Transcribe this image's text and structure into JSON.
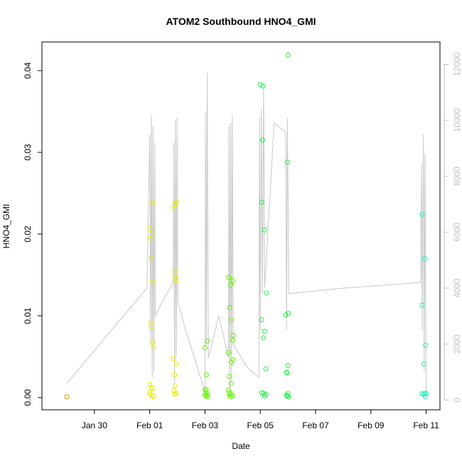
{
  "chart_data": {
    "type": "scatter",
    "title": "ATOM2 Southbound HNO4_GMI",
    "xlabel": "Date",
    "ylabel": "HNO4_GMI",
    "x_ticks": [
      "Jan 30",
      "Feb 01",
      "Feb 03",
      "Feb 05",
      "Feb 07",
      "Feb 09",
      "Feb 11"
    ],
    "x_tick_days": [
      30,
      32,
      34,
      36,
      38,
      40,
      42
    ],
    "xlim_days": [
      28.1,
      42.5
    ],
    "ylim": [
      -0.0015,
      0.0435
    ],
    "y_ticks": [
      "0.00",
      "0.01",
      "0.02",
      "0.03",
      "0.04"
    ],
    "y_tick_values": [
      0.0,
      0.01,
      0.02,
      0.03,
      0.04
    ],
    "y2_ticks": [
      "0",
      "2000",
      "4000",
      "6000",
      "8000",
      "10000",
      "12000"
    ],
    "y2_tick_values": [
      0,
      2000,
      4000,
      6000,
      8000,
      10000,
      12000
    ],
    "y2lim": [
      -350,
      12800
    ],
    "grid": false,
    "legend": "none",
    "colors": {
      "points_early": "#e69500",
      "points_yellow": "#e2ee00",
      "points_lime": "#66ee00",
      "points_green": "#22ee44",
      "points_cyan": "#22eebb",
      "altitude_line": "#c8c8c8",
      "axis": "#000000",
      "right_axis": "#c0c0c0"
    },
    "series": [
      {
        "color": "#e69500",
        "points": [
          [
            29.0,
            0.0001
          ]
        ]
      },
      {
        "color": "#e2ee00",
        "points": [
          [
            32.0,
            0.0207
          ],
          [
            32.02,
            0.0195
          ],
          [
            32.05,
            0.0171
          ],
          [
            32.08,
            0.0203
          ],
          [
            32.1,
            0.0238
          ],
          [
            32.1,
            0.0142
          ],
          [
            32.02,
            0.0091
          ],
          [
            32.06,
            0.0086
          ],
          [
            32.1,
            0.0067
          ],
          [
            32.14,
            0.0061
          ],
          [
            32.0,
            0.0016
          ],
          [
            32.06,
            0.0012
          ],
          [
            32.12,
            0.0011
          ],
          [
            32.02,
            0.0004
          ],
          [
            32.08,
            0.0002
          ],
          [
            32.14,
            0.0001
          ],
          [
            32.0,
            0.0006
          ],
          [
            32.85,
            0.0232
          ],
          [
            32.92,
            0.0236
          ],
          [
            32.97,
            0.0239
          ],
          [
            32.9,
            0.0154
          ],
          [
            32.92,
            0.0146
          ],
          [
            32.95,
            0.0143
          ],
          [
            32.85,
            0.0048
          ],
          [
            32.9,
            0.0028
          ],
          [
            32.97,
            0.0041
          ],
          [
            32.92,
            0.0014
          ],
          [
            32.88,
            0.0008
          ],
          [
            32.95,
            0.0005
          ],
          [
            32.9,
            0.0004
          ]
        ]
      },
      {
        "color": "#66ee00",
        "points": [
          [
            34.0,
            0.0061
          ],
          [
            34.08,
            0.0069
          ],
          [
            34.05,
            0.0028
          ],
          [
            34.0,
            0.001
          ],
          [
            34.05,
            0.0009
          ],
          [
            34.02,
            0.0006
          ],
          [
            34.08,
            0.0004
          ],
          [
            34.0,
            0.0003
          ],
          [
            34.04,
            0.0002
          ],
          [
            34.1,
            0.0001
          ],
          [
            34.85,
            0.0147
          ],
          [
            34.92,
            0.0138
          ],
          [
            35.0,
            0.0143
          ],
          [
            34.9,
            0.011
          ],
          [
            34.95,
            0.0095
          ],
          [
            35.02,
            0.0076
          ],
          [
            35.0,
            0.007
          ],
          [
            34.85,
            0.0055
          ],
          [
            34.95,
            0.0043
          ],
          [
            35.02,
            0.0046
          ],
          [
            34.88,
            0.0026
          ],
          [
            34.95,
            0.0017
          ],
          [
            34.85,
            0.0009
          ],
          [
            34.9,
            0.0006
          ],
          [
            34.88,
            0.0004
          ],
          [
            34.95,
            0.0003
          ],
          [
            35.0,
            0.0002
          ],
          [
            34.92,
            0.0001
          ]
        ]
      },
      {
        "color": "#22ee44",
        "points": [
          [
            36.0,
            0.0383
          ],
          [
            36.1,
            0.0381
          ],
          [
            36.08,
            0.0315
          ],
          [
            36.05,
            0.0239
          ],
          [
            36.15,
            0.0205
          ],
          [
            36.22,
            0.0128
          ],
          [
            36.05,
            0.0095
          ],
          [
            36.15,
            0.0081
          ],
          [
            36.12,
            0.0073
          ],
          [
            36.2,
            0.0035
          ],
          [
            36.05,
            0.0006
          ],
          [
            36.12,
            0.0005
          ],
          [
            36.2,
            0.0004
          ],
          [
            36.15,
            0.0002
          ],
          [
            37.0,
            0.0419
          ],
          [
            36.98,
            0.0288
          ],
          [
            36.92,
            0.0101
          ],
          [
            37.02,
            0.0103
          ],
          [
            37.0,
            0.0039
          ],
          [
            36.95,
            0.0031
          ],
          [
            36.97,
            0.003
          ],
          [
            37.0,
            0.0005
          ],
          [
            36.95,
            0.0003
          ],
          [
            36.97,
            0.0002
          ],
          [
            37.02,
            0.0001
          ]
        ]
      },
      {
        "color": "#22eebb",
        "points": [
          [
            41.85,
            0.0224
          ],
          [
            41.95,
            0.017
          ],
          [
            41.85,
            0.0113
          ],
          [
            41.98,
            0.0064
          ],
          [
            41.92,
            0.0041
          ],
          [
            41.85,
            0.0005
          ],
          [
            41.95,
            0.0005
          ],
          [
            42.0,
            0.0005
          ],
          [
            41.9,
            0.0004
          ],
          [
            41.97,
            0.0001
          ]
        ]
      }
    ],
    "altitude_series": {
      "axis": "right",
      "points": [
        [
          29.0,
          600
        ],
        [
          31.9,
          4000
        ],
        [
          32.0,
          9500
        ],
        [
          32.03,
          2000
        ],
        [
          32.06,
          10200
        ],
        [
          32.09,
          800
        ],
        [
          32.12,
          9800
        ],
        [
          32.15,
          1000
        ],
        [
          32.18,
          9200
        ],
        [
          32.2,
          3000
        ],
        [
          32.5,
          3600
        ],
        [
          32.85,
          4200
        ],
        [
          32.87,
          9200
        ],
        [
          32.9,
          600
        ],
        [
          32.93,
          10000
        ],
        [
          32.96,
          1500
        ],
        [
          32.99,
          10100
        ],
        [
          33.02,
          3500
        ],
        [
          33.3,
          2500
        ],
        [
          34.0,
          300
        ],
        [
          34.02,
          10300
        ],
        [
          34.05,
          2000
        ],
        [
          34.08,
          11700
        ],
        [
          34.12,
          1500
        ],
        [
          34.5,
          3000
        ],
        [
          34.85,
          1500
        ],
        [
          34.87,
          9800
        ],
        [
          34.9,
          400
        ],
        [
          34.93,
          9900
        ],
        [
          34.96,
          600
        ],
        [
          34.99,
          10200
        ],
        [
          35.02,
          2000
        ],
        [
          35.5,
          1200
        ],
        [
          35.95,
          800
        ],
        [
          35.97,
          10100
        ],
        [
          36.0,
          2500
        ],
        [
          36.04,
          10400
        ],
        [
          36.08,
          3800
        ],
        [
          36.12,
          11200
        ],
        [
          36.16,
          4000
        ],
        [
          36.5,
          9900
        ],
        [
          36.9,
          9600
        ],
        [
          36.92,
          9400
        ],
        [
          36.95,
          2500
        ],
        [
          36.98,
          10100
        ],
        [
          37.01,
          6500
        ],
        [
          37.03,
          3800
        ],
        [
          39.0,
          4000
        ],
        [
          41.8,
          4200
        ],
        [
          41.83,
          8500
        ],
        [
          41.86,
          2500
        ],
        [
          41.9,
          9500
        ],
        [
          41.93,
          1000
        ],
        [
          41.96,
          8800
        ],
        [
          42.0,
          200
        ]
      ]
    }
  }
}
